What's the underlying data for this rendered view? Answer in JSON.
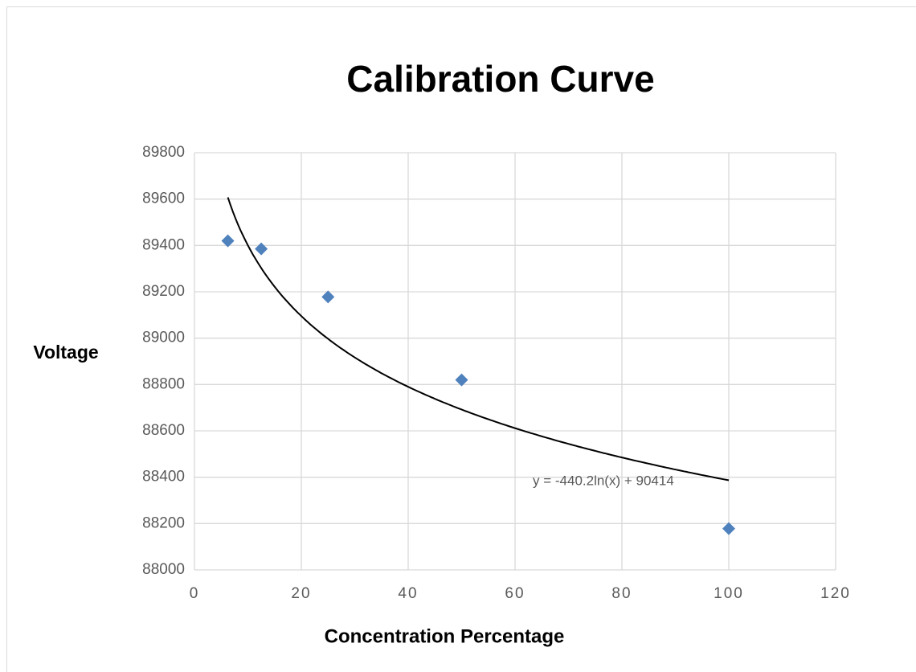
{
  "chart_data": {
    "type": "scatter",
    "title": "Calibration Curve",
    "x_label": "Concentration Percentage",
    "y_label": "Voltage",
    "series": [
      {
        "name": "Voltage",
        "color": "#4f81bd",
        "x": [
          6.25,
          12.5,
          25,
          50,
          100
        ],
        "values": [
          89420,
          89385,
          89178,
          88820,
          88178
        ]
      }
    ],
    "trendline": {
      "label": "y = -440.2ln(x) + 90414",
      "color": "#000000"
    },
    "xlim": [
      0,
      120
    ],
    "xticks": [
      0,
      20,
      40,
      60,
      80,
      100,
      120
    ],
    "ylim": [
      88000,
      89800
    ],
    "yticks": [
      88000,
      88200,
      88400,
      88600,
      88800,
      89000,
      89200,
      89400,
      89600,
      89800
    ],
    "grid": true
  }
}
